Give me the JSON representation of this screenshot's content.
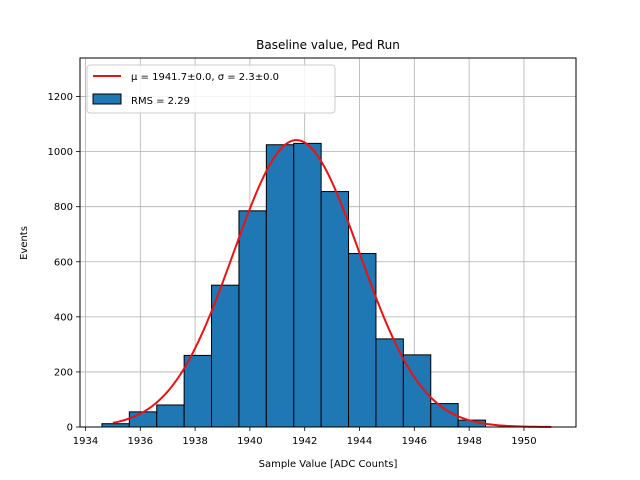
{
  "chart_data": {
    "type": "bar",
    "title": "Baseline value, Ped Run",
    "xlabel": "Sample Value [ADC Counts]",
    "ylabel": "Events",
    "xlim": [
      1933.8,
      1951.9
    ],
    "ylim": [
      0,
      1340
    ],
    "grid": true,
    "legend_position": "top-left",
    "x_ticks": [
      1934,
      1936,
      1938,
      1940,
      1942,
      1944,
      1946,
      1948,
      1950
    ],
    "y_ticks": [
      0,
      200,
      400,
      600,
      800,
      1000,
      1200
    ],
    "histogram": {
      "bins": [
        {
          "x0": 1934.6,
          "x1": 1935.6,
          "value": 12
        },
        {
          "x0": 1935.6,
          "x1": 1936.6,
          "value": 55
        },
        {
          "x0": 1936.6,
          "x1": 1937.6,
          "value": 80
        },
        {
          "x0": 1937.6,
          "x1": 1938.6,
          "value": 260
        },
        {
          "x0": 1938.6,
          "x1": 1939.6,
          "value": 515
        },
        {
          "x0": 1939.6,
          "x1": 1940.6,
          "value": 785
        },
        {
          "x0": 1940.6,
          "x1": 1941.6,
          "value": 1025
        },
        {
          "x0": 1941.6,
          "x1": 1942.6,
          "value": 1030
        },
        {
          "x0": 1942.6,
          "x1": 1943.6,
          "value": 855
        },
        {
          "x0": 1943.6,
          "x1": 1944.6,
          "value": 630
        },
        {
          "x0": 1944.6,
          "x1": 1945.6,
          "value": 320
        },
        {
          "x0": 1945.6,
          "x1": 1946.6,
          "value": 262
        },
        {
          "x0": 1946.6,
          "x1": 1947.6,
          "value": 85
        },
        {
          "x0": 1947.6,
          "x1": 1948.6,
          "value": 25
        }
      ],
      "color": "#1f77b4",
      "edge_color": "#000000"
    },
    "fit": {
      "mu": 1941.7,
      "sigma": 2.3,
      "amplitude": 1042,
      "x_range": [
        1935.0,
        1951.0
      ],
      "color": "#ee1111"
    },
    "legend": {
      "entries": [
        {
          "label": "μ = 1941.7±0.0, σ = 2.3±0.0",
          "kind": "line",
          "color": "#ee1111"
        },
        {
          "label": "RMS = 2.29",
          "kind": "patch",
          "color": "#1f77b4"
        }
      ]
    }
  }
}
